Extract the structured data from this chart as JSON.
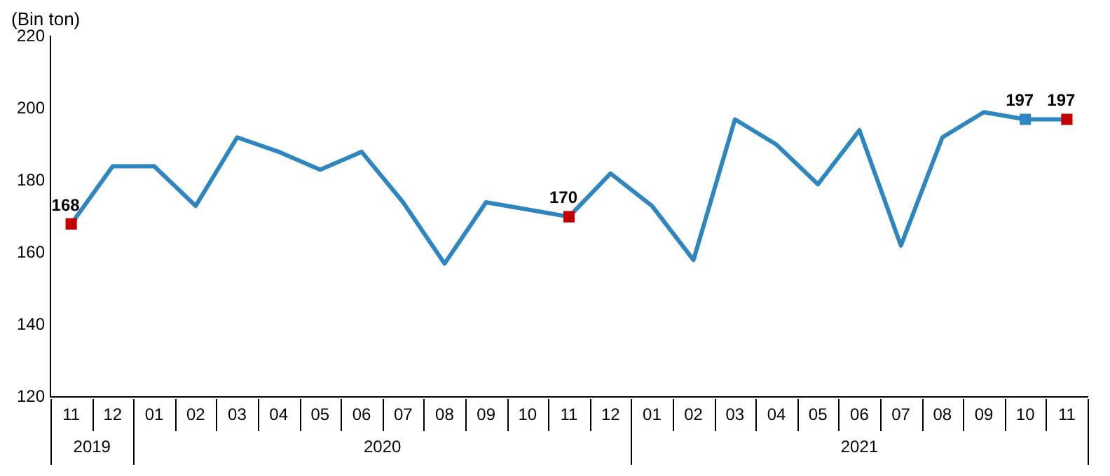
{
  "chart_data": {
    "type": "line",
    "ylabel": "(Bin ton)",
    "categories": [
      "11",
      "12",
      "01",
      "02",
      "03",
      "04",
      "05",
      "06",
      "07",
      "08",
      "09",
      "10",
      "11",
      "12",
      "01",
      "02",
      "03",
      "04",
      "05",
      "06",
      "07",
      "08",
      "09",
      "10",
      "11"
    ],
    "annotations": [
      "2019",
      "2020",
      "2021"
    ],
    "series": [
      {
        "type": "line",
        "color": "#2e86c1",
        "marker": "none",
        "values": [
          168,
          184,
          184,
          173,
          192,
          188,
          183,
          188,
          174,
          157,
          174,
          172,
          170,
          182,
          173,
          158,
          197,
          190,
          179,
          194,
          162,
          192,
          199,
          197,
          197
        ],
        "value_labels": [
          "168",
          null,
          null,
          null,
          null,
          null,
          null,
          null,
          null,
          null,
          null,
          null,
          "170",
          null,
          null,
          null,
          null,
          null,
          null,
          null,
          null,
          null,
          null,
          "197",
          "197"
        ]
      },
      {
        "type": "scatter",
        "marker": "square",
        "colors": [
          "#c00000",
          null,
          null,
          null,
          null,
          null,
          null,
          null,
          null,
          null,
          null,
          null,
          "#c00000",
          null,
          null,
          null,
          null,
          null,
          null,
          null,
          null,
          null,
          null,
          "#2e86c1",
          "#c00000"
        ],
        "values": [
          168,
          null,
          null,
          null,
          null,
          null,
          null,
          null,
          null,
          null,
          null,
          null,
          170,
          null,
          null,
          null,
          null,
          null,
          null,
          null,
          null,
          null,
          null,
          197,
          197
        ]
      }
    ],
    "ylim": [
      120,
      220
    ],
    "yticks": [
      120,
      140,
      160,
      180,
      200,
      220
    ],
    "grid": false,
    "legend": false
  }
}
